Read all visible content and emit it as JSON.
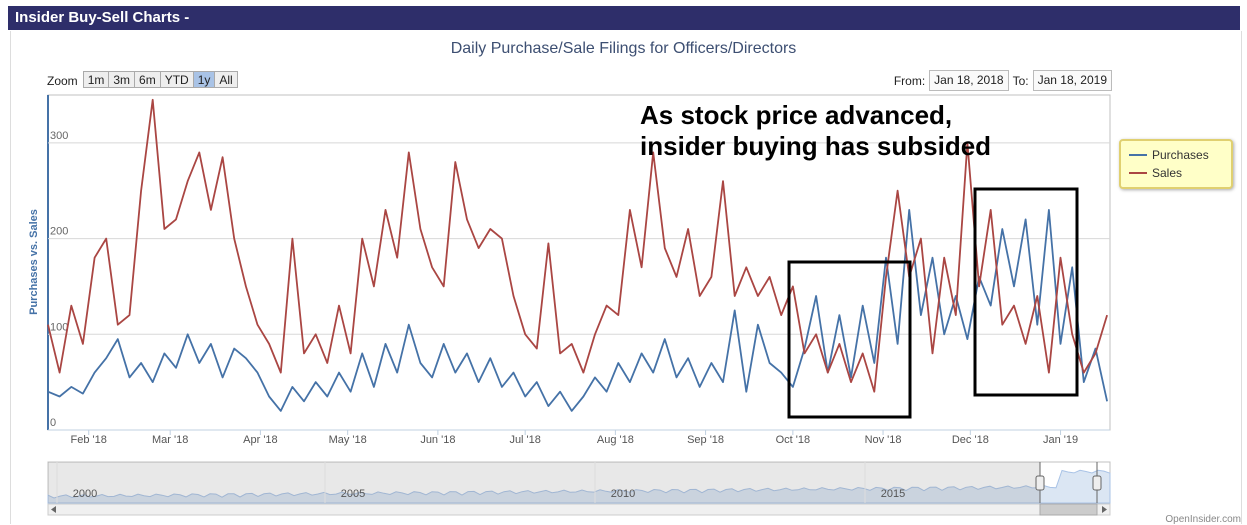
{
  "header": {
    "title": "Insider Buy-Sell Charts -"
  },
  "chart_title": "Daily Purchase/Sale Filings for Officers/Directors",
  "zoom": {
    "label": "Zoom",
    "buttons": [
      "1m",
      "3m",
      "6m",
      "YTD",
      "1y",
      "All"
    ],
    "active": "1y"
  },
  "range": {
    "from_label": "From:",
    "from_value": "Jan 18, 2018",
    "to_label": "To:",
    "to_value": "Jan 18, 2019"
  },
  "legend": {
    "purchases": "Purchases",
    "sales": "Sales"
  },
  "annotation": {
    "line1": "As stock price advanced,",
    "line2": "insider buying has subsided"
  },
  "footer": "OpenInsider.com",
  "colors": {
    "purchases": "#4572a7",
    "sales": "#aa4643",
    "header": "#2e2e6a",
    "legend_bg": "#ffffc8"
  },
  "chart_data": {
    "type": "line",
    "ylabel": "Purchases vs. Sales",
    "ylim": [
      0,
      350
    ],
    "yticks": [
      0,
      100,
      200,
      300
    ],
    "xlim": [
      "2018-01-18",
      "2019-01-18"
    ],
    "xticks": [
      {
        "date": "2018-02-01",
        "label": "Feb '18"
      },
      {
        "date": "2018-03-01",
        "label": "Mar '18"
      },
      {
        "date": "2018-04-01",
        "label": "Apr '18"
      },
      {
        "date": "2018-05-01",
        "label": "May '18"
      },
      {
        "date": "2018-06-01",
        "label": "Jun '18"
      },
      {
        "date": "2018-07-01",
        "label": "Jul '18"
      },
      {
        "date": "2018-08-01",
        "label": "Aug '18"
      },
      {
        "date": "2018-09-01",
        "label": "Sep '18"
      },
      {
        "date": "2018-10-01",
        "label": "Oct '18"
      },
      {
        "date": "2018-11-01",
        "label": "Nov '18"
      },
      {
        "date": "2018-12-01",
        "label": "Dec '18"
      },
      {
        "date": "2019-01-01",
        "label": "Jan '19"
      }
    ],
    "series": [
      {
        "name": "Purchases",
        "color": "#4572a7",
        "points": [
          [
            "2018-01-18",
            40
          ],
          [
            "2018-01-22",
            35
          ],
          [
            "2018-01-26",
            45
          ],
          [
            "2018-01-30",
            38
          ],
          [
            "2018-02-03",
            60
          ],
          [
            "2018-02-07",
            75
          ],
          [
            "2018-02-11",
            95
          ],
          [
            "2018-02-15",
            55
          ],
          [
            "2018-02-19",
            70
          ],
          [
            "2018-02-23",
            50
          ],
          [
            "2018-02-27",
            80
          ],
          [
            "2018-03-03",
            65
          ],
          [
            "2018-03-07",
            100
          ],
          [
            "2018-03-11",
            70
          ],
          [
            "2018-03-15",
            90
          ],
          [
            "2018-03-19",
            55
          ],
          [
            "2018-03-23",
            85
          ],
          [
            "2018-03-27",
            75
          ],
          [
            "2018-03-31",
            60
          ],
          [
            "2018-04-04",
            35
          ],
          [
            "2018-04-08",
            20
          ],
          [
            "2018-04-12",
            45
          ],
          [
            "2018-04-16",
            30
          ],
          [
            "2018-04-20",
            50
          ],
          [
            "2018-04-24",
            35
          ],
          [
            "2018-04-28",
            60
          ],
          [
            "2018-05-02",
            40
          ],
          [
            "2018-05-06",
            80
          ],
          [
            "2018-05-10",
            45
          ],
          [
            "2018-05-14",
            90
          ],
          [
            "2018-05-18",
            60
          ],
          [
            "2018-05-22",
            110
          ],
          [
            "2018-05-26",
            70
          ],
          [
            "2018-05-30",
            55
          ],
          [
            "2018-06-03",
            90
          ],
          [
            "2018-06-07",
            60
          ],
          [
            "2018-06-11",
            80
          ],
          [
            "2018-06-15",
            50
          ],
          [
            "2018-06-19",
            75
          ],
          [
            "2018-06-23",
            45
          ],
          [
            "2018-06-27",
            60
          ],
          [
            "2018-07-01",
            35
          ],
          [
            "2018-07-05",
            50
          ],
          [
            "2018-07-09",
            25
          ],
          [
            "2018-07-13",
            40
          ],
          [
            "2018-07-17",
            20
          ],
          [
            "2018-07-21",
            35
          ],
          [
            "2018-07-25",
            55
          ],
          [
            "2018-07-29",
            40
          ],
          [
            "2018-08-02",
            70
          ],
          [
            "2018-08-06",
            50
          ],
          [
            "2018-08-10",
            80
          ],
          [
            "2018-08-14",
            60
          ],
          [
            "2018-08-18",
            95
          ],
          [
            "2018-08-22",
            55
          ],
          [
            "2018-08-26",
            75
          ],
          [
            "2018-08-30",
            45
          ],
          [
            "2018-09-03",
            70
          ],
          [
            "2018-09-07",
            50
          ],
          [
            "2018-09-11",
            125
          ],
          [
            "2018-09-15",
            40
          ],
          [
            "2018-09-19",
            110
          ],
          [
            "2018-09-23",
            70
          ],
          [
            "2018-09-27",
            60
          ],
          [
            "2018-10-01",
            45
          ],
          [
            "2018-10-05",
            85
          ],
          [
            "2018-10-09",
            140
          ],
          [
            "2018-10-13",
            60
          ],
          [
            "2018-10-17",
            120
          ],
          [
            "2018-10-21",
            55
          ],
          [
            "2018-10-25",
            130
          ],
          [
            "2018-10-29",
            70
          ],
          [
            "2018-11-02",
            180
          ],
          [
            "2018-11-06",
            90
          ],
          [
            "2018-11-10",
            230
          ],
          [
            "2018-11-14",
            120
          ],
          [
            "2018-11-18",
            180
          ],
          [
            "2018-11-22",
            100
          ],
          [
            "2018-11-26",
            140
          ],
          [
            "2018-11-30",
            95
          ],
          [
            "2018-12-04",
            160
          ],
          [
            "2018-12-08",
            130
          ],
          [
            "2018-12-12",
            210
          ],
          [
            "2018-12-16",
            150
          ],
          [
            "2018-12-20",
            220
          ],
          [
            "2018-12-24",
            110
          ],
          [
            "2018-12-28",
            230
          ],
          [
            "2019-01-01",
            90
          ],
          [
            "2019-01-05",
            170
          ],
          [
            "2019-01-09",
            50
          ],
          [
            "2019-01-13",
            85
          ],
          [
            "2019-01-17",
            30
          ]
        ]
      },
      {
        "name": "Sales",
        "color": "#aa4643",
        "points": [
          [
            "2018-01-18",
            110
          ],
          [
            "2018-01-22",
            60
          ],
          [
            "2018-01-26",
            130
          ],
          [
            "2018-01-30",
            90
          ],
          [
            "2018-02-03",
            180
          ],
          [
            "2018-02-07",
            200
          ],
          [
            "2018-02-11",
            110
          ],
          [
            "2018-02-15",
            120
          ],
          [
            "2018-02-19",
            250
          ],
          [
            "2018-02-23",
            345
          ],
          [
            "2018-02-27",
            210
          ],
          [
            "2018-03-03",
            220
          ],
          [
            "2018-03-07",
            260
          ],
          [
            "2018-03-11",
            290
          ],
          [
            "2018-03-15",
            230
          ],
          [
            "2018-03-19",
            285
          ],
          [
            "2018-03-23",
            200
          ],
          [
            "2018-03-27",
            150
          ],
          [
            "2018-03-31",
            110
          ],
          [
            "2018-04-04",
            90
          ],
          [
            "2018-04-08",
            60
          ],
          [
            "2018-04-12",
            200
          ],
          [
            "2018-04-16",
            80
          ],
          [
            "2018-04-20",
            100
          ],
          [
            "2018-04-24",
            70
          ],
          [
            "2018-04-28",
            130
          ],
          [
            "2018-05-02",
            80
          ],
          [
            "2018-05-06",
            200
          ],
          [
            "2018-05-10",
            150
          ],
          [
            "2018-05-14",
            230
          ],
          [
            "2018-05-18",
            180
          ],
          [
            "2018-05-22",
            290
          ],
          [
            "2018-05-26",
            210
          ],
          [
            "2018-05-30",
            170
          ],
          [
            "2018-06-03",
            150
          ],
          [
            "2018-06-07",
            280
          ],
          [
            "2018-06-11",
            220
          ],
          [
            "2018-06-15",
            190
          ],
          [
            "2018-06-19",
            210
          ],
          [
            "2018-06-23",
            200
          ],
          [
            "2018-06-27",
            140
          ],
          [
            "2018-07-01",
            100
          ],
          [
            "2018-07-05",
            85
          ],
          [
            "2018-07-09",
            195
          ],
          [
            "2018-07-13",
            80
          ],
          [
            "2018-07-17",
            90
          ],
          [
            "2018-07-21",
            60
          ],
          [
            "2018-07-25",
            100
          ],
          [
            "2018-07-29",
            130
          ],
          [
            "2018-08-02",
            120
          ],
          [
            "2018-08-06",
            230
          ],
          [
            "2018-08-10",
            170
          ],
          [
            "2018-08-14",
            290
          ],
          [
            "2018-08-18",
            190
          ],
          [
            "2018-08-22",
            160
          ],
          [
            "2018-08-26",
            210
          ],
          [
            "2018-08-30",
            140
          ],
          [
            "2018-09-03",
            160
          ],
          [
            "2018-09-07",
            260
          ],
          [
            "2018-09-11",
            140
          ],
          [
            "2018-09-15",
            170
          ],
          [
            "2018-09-19",
            140
          ],
          [
            "2018-09-23",
            160
          ],
          [
            "2018-09-27",
            120
          ],
          [
            "2018-10-01",
            150
          ],
          [
            "2018-10-05",
            80
          ],
          [
            "2018-10-09",
            100
          ],
          [
            "2018-10-13",
            60
          ],
          [
            "2018-10-17",
            90
          ],
          [
            "2018-10-21",
            50
          ],
          [
            "2018-10-25",
            80
          ],
          [
            "2018-10-29",
            40
          ],
          [
            "2018-11-02",
            160
          ],
          [
            "2018-11-06",
            250
          ],
          [
            "2018-11-10",
            160
          ],
          [
            "2018-11-14",
            200
          ],
          [
            "2018-11-18",
            80
          ],
          [
            "2018-11-22",
            180
          ],
          [
            "2018-11-26",
            120
          ],
          [
            "2018-11-30",
            300
          ],
          [
            "2018-12-04",
            150
          ],
          [
            "2018-12-08",
            230
          ],
          [
            "2018-12-12",
            110
          ],
          [
            "2018-12-16",
            130
          ],
          [
            "2018-12-20",
            90
          ],
          [
            "2018-12-24",
            140
          ],
          [
            "2018-12-28",
            60
          ],
          [
            "2019-01-01",
            180
          ],
          [
            "2019-01-05",
            100
          ],
          [
            "2019-01-09",
            60
          ],
          [
            "2019-01-13",
            80
          ],
          [
            "2019-01-17",
            120
          ]
        ]
      }
    ],
    "navigator": {
      "labels": [
        "2000",
        "2005",
        "2010",
        "2015"
      ]
    }
  }
}
